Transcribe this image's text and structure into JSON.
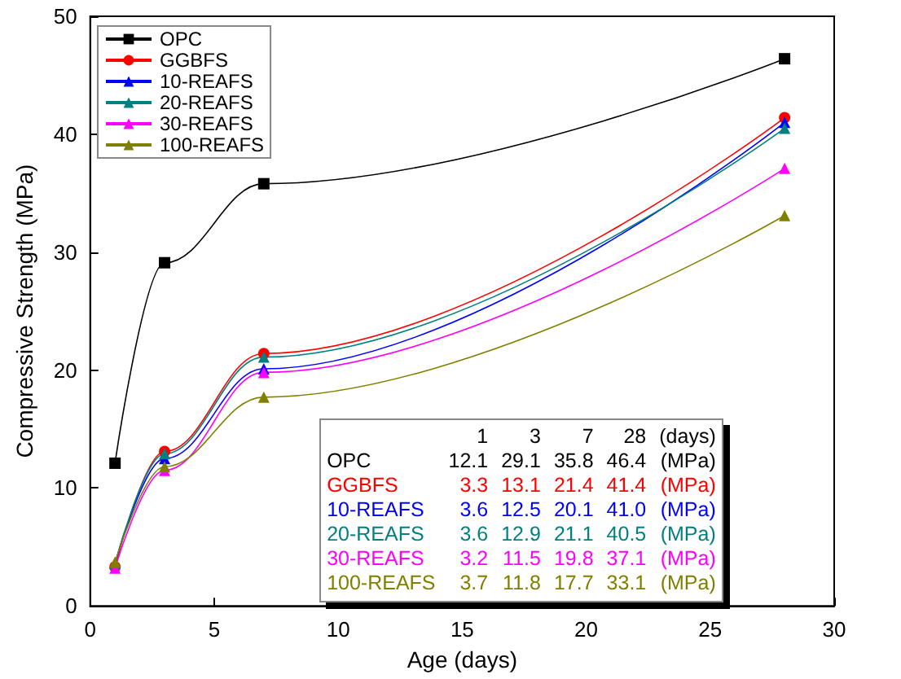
{
  "chart_data": {
    "type": "line",
    "xlabel": "Age (days)",
    "ylabel": "Compressive Strength (MPa)",
    "x": [
      1,
      3,
      7,
      28
    ],
    "series": [
      {
        "name": "OPC",
        "color": "#000000",
        "marker": "square",
        "values": [
          12.1,
          29.1,
          35.8,
          46.4
        ]
      },
      {
        "name": "GGBFS",
        "color": "#ff0000",
        "marker": "circle",
        "values": [
          3.3,
          13.1,
          21.4,
          41.4
        ]
      },
      {
        "name": "10-REAFS",
        "color": "#0000ff",
        "marker": "triangle",
        "values": [
          3.6,
          12.5,
          20.1,
          41.0
        ]
      },
      {
        "name": "20-REAFS",
        "color": "#008080",
        "marker": "triangle",
        "values": [
          3.6,
          12.9,
          21.1,
          40.5
        ]
      },
      {
        "name": "30-REAFS",
        "color": "#ff00ff",
        "marker": "triangle",
        "values": [
          3.2,
          11.5,
          19.8,
          37.1
        ]
      },
      {
        "name": "100-REAFS",
        "color": "#808000",
        "marker": "triangle",
        "values": [
          3.7,
          11.8,
          17.7,
          33.1
        ]
      }
    ],
    "xlim": [
      0,
      30
    ],
    "xticks": [
      0,
      5,
      10,
      15,
      20,
      25,
      30
    ],
    "ylim": [
      0,
      50
    ],
    "yticks": [
      0,
      10,
      20,
      30,
      40,
      50
    ],
    "legend": "top left",
    "grid": false,
    "annotations": [
      "1",
      "3",
      "7",
      "28",
      "(days)",
      "OPC",
      "12.1",
      "29.1",
      "35.8",
      "46.4",
      "(MPa)",
      "GGBFS",
      "3.3",
      "13.1",
      "21.4",
      "41.4",
      "(MPa)",
      "10-REAFS",
      "3.6",
      "12.5",
      "20.1",
      "41.0",
      "(MPa)",
      "20-REAFS",
      "3.6",
      "12.9",
      "21.1",
      "40.5",
      "(MPa)",
      "30-REAFS",
      "3.2",
      "11.5",
      "19.8",
      "37.1",
      "(MPa)",
      "100-REAFS",
      "3.7",
      "11.8",
      "17.7",
      "33.1",
      "(MPa)"
    ]
  }
}
